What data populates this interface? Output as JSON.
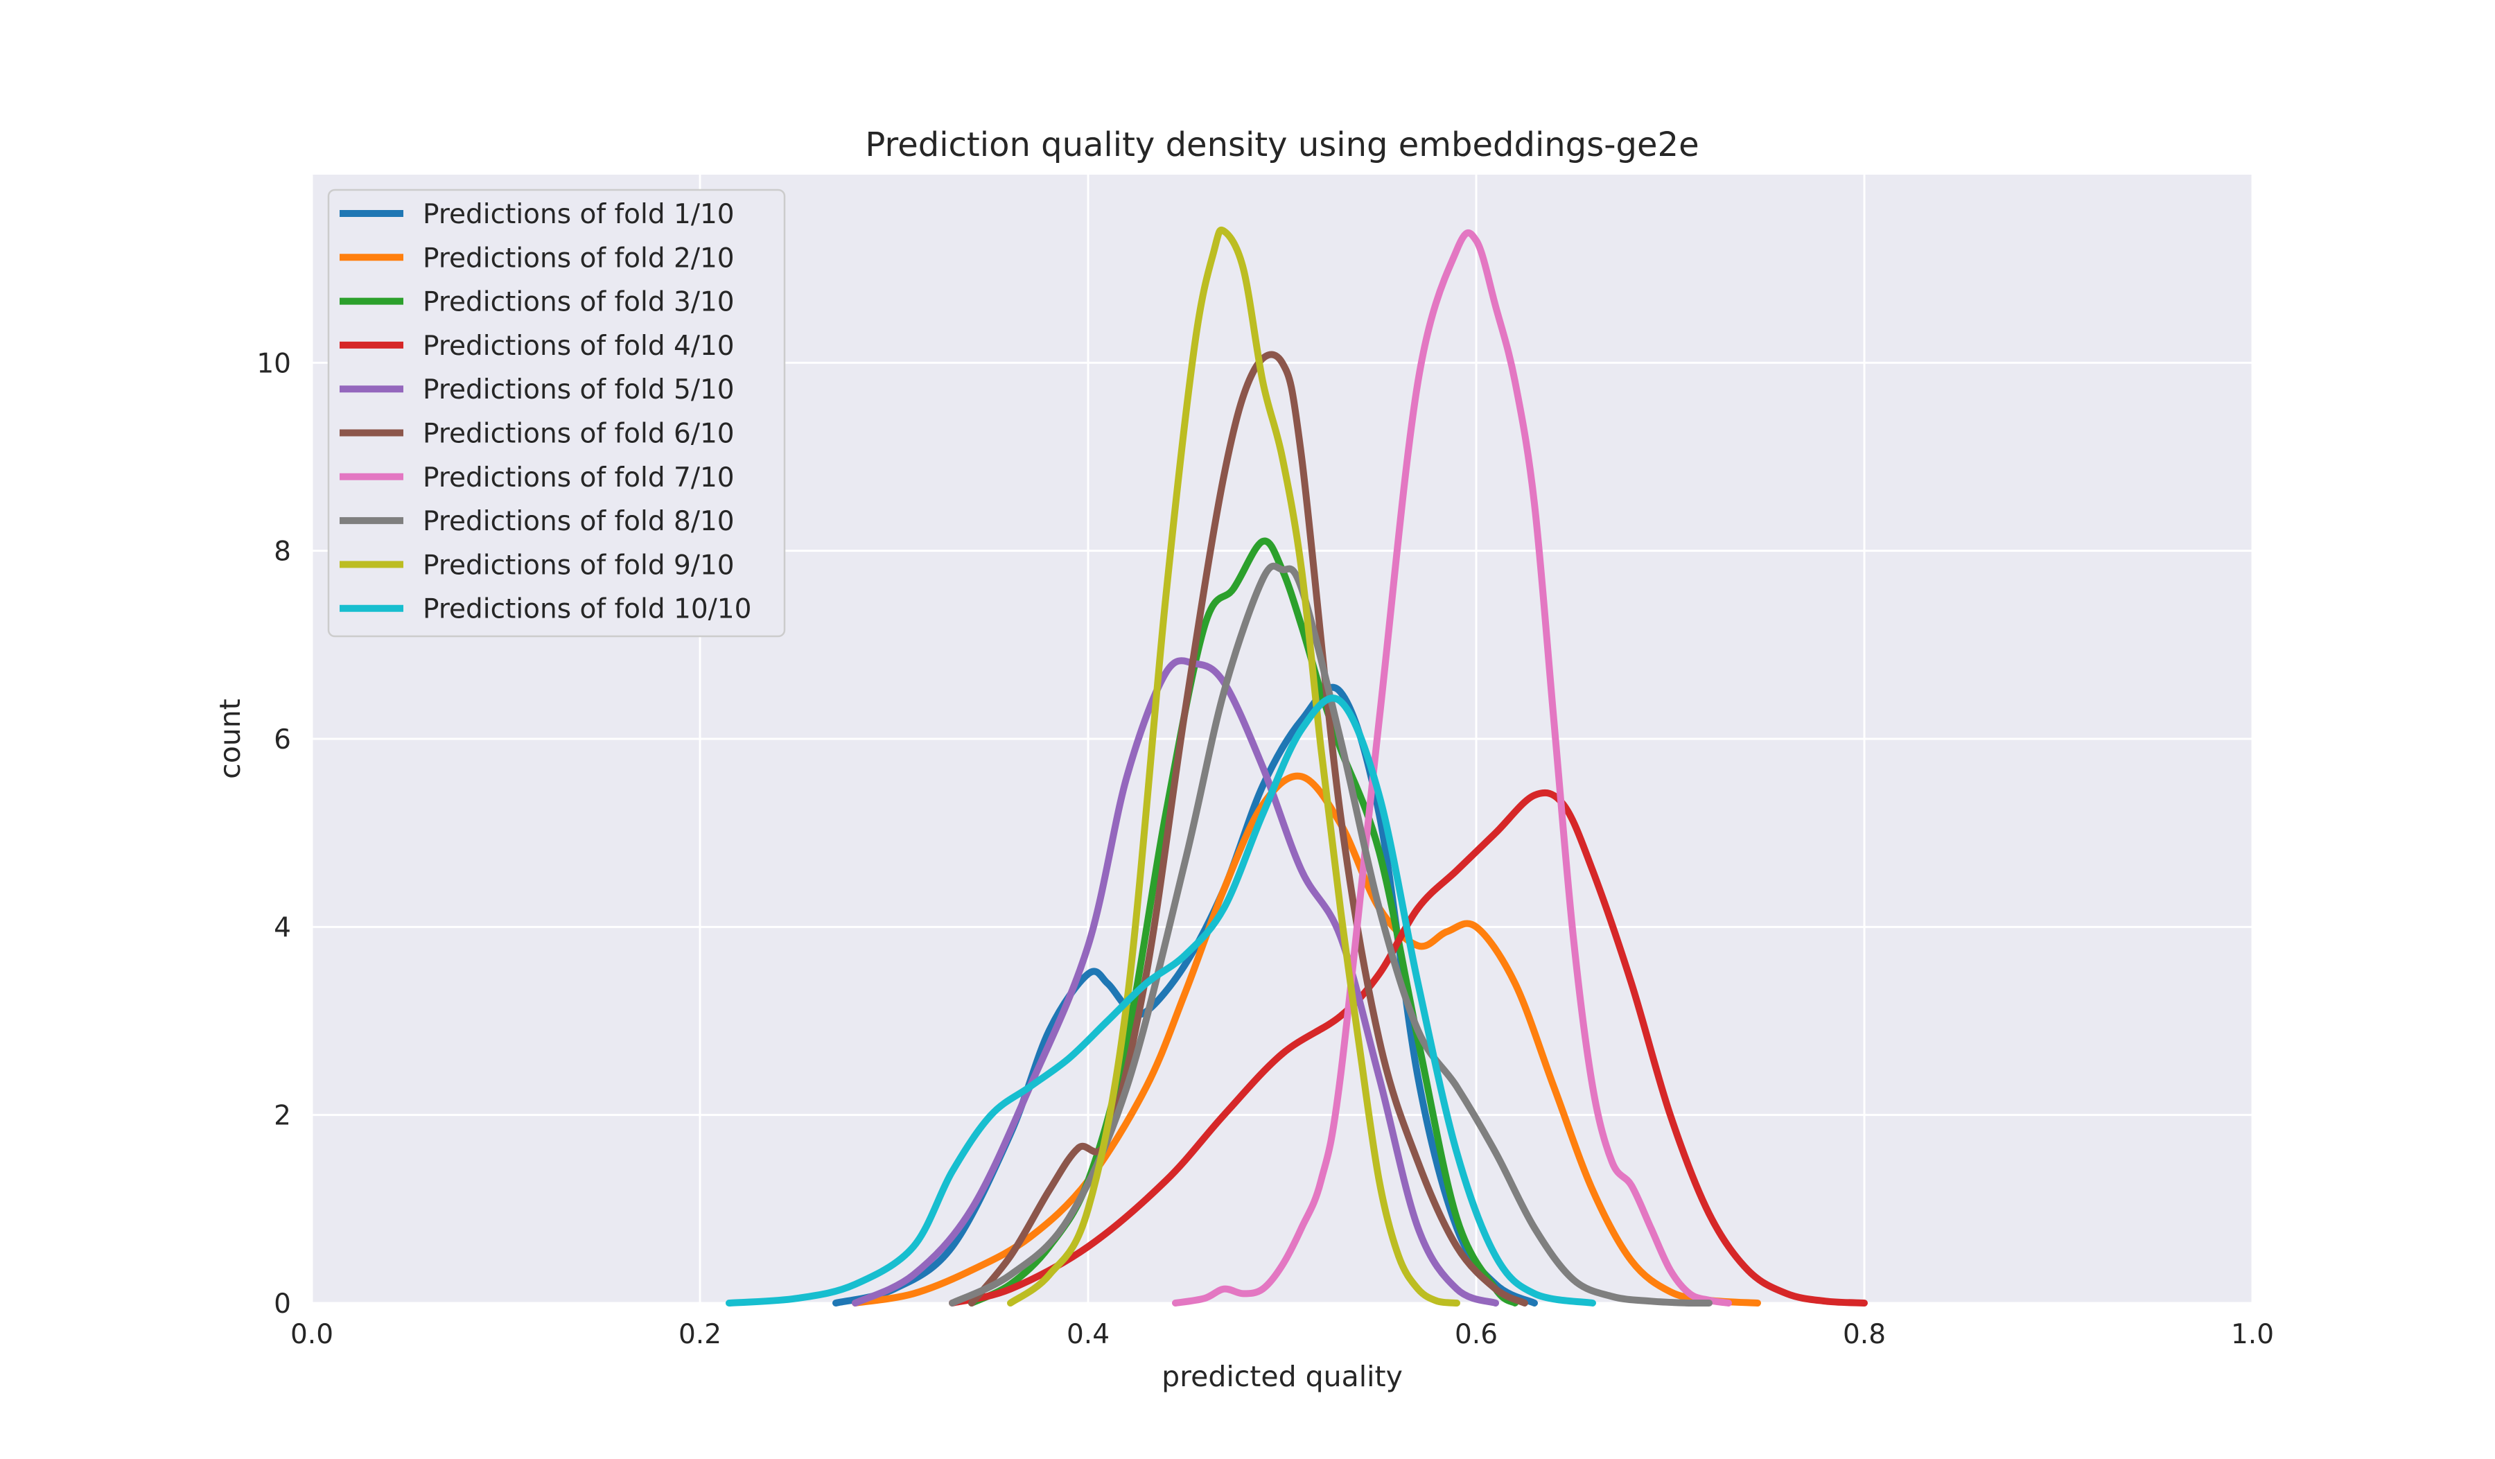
{
  "chart_data": {
    "type": "line",
    "title": "Prediction quality density using embeddings-ge2e",
    "xlabel": "predicted quality",
    "ylabel": "count",
    "xlim": [
      0.0,
      1.0
    ],
    "ylim": [
      0,
      12
    ],
    "xticks": [
      0.0,
      0.2,
      0.4,
      0.6,
      0.8,
      1.0
    ],
    "xtick_labels": [
      "0.0",
      "0.2",
      "0.4",
      "0.6",
      "0.8",
      "1.0"
    ],
    "yticks": [
      0,
      2,
      4,
      6,
      8,
      10
    ],
    "ytick_labels": [
      "0",
      "2",
      "4",
      "6",
      "8",
      "10"
    ],
    "grid": true,
    "legend_position": "top-left",
    "series": [
      {
        "name": "Predictions of fold 1/10",
        "color": "#1f77b4",
        "x": [
          0.27,
          0.3,
          0.33,
          0.36,
          0.38,
          0.4,
          0.41,
          0.42,
          0.43,
          0.45,
          0.47,
          0.49,
          0.51,
          0.53,
          0.55,
          0.57,
          0.59,
          0.61,
          0.63
        ],
        "y": [
          0.0,
          0.15,
          0.6,
          1.8,
          2.9,
          3.5,
          3.4,
          3.15,
          3.1,
          3.6,
          4.4,
          5.5,
          6.2,
          6.5,
          5.2,
          2.4,
          0.8,
          0.2,
          0.0
        ]
      },
      {
        "name": "Predictions of fold 2/10",
        "color": "#ff7f0e",
        "x": [
          0.28,
          0.31,
          0.34,
          0.37,
          0.4,
          0.43,
          0.45,
          0.47,
          0.49,
          0.51,
          0.53,
          0.55,
          0.57,
          0.585,
          0.6,
          0.62,
          0.64,
          0.66,
          0.68,
          0.7,
          0.72,
          0.745
        ],
        "y": [
          0.0,
          0.1,
          0.35,
          0.7,
          1.3,
          2.3,
          3.3,
          4.4,
          5.3,
          5.6,
          5.1,
          4.2,
          3.8,
          3.95,
          4.0,
          3.4,
          2.3,
          1.2,
          0.45,
          0.12,
          0.03,
          0.0
        ]
      },
      {
        "name": "Predictions of fold 3/10",
        "color": "#2ca02c",
        "x": [
          0.34,
          0.36,
          0.38,
          0.4,
          0.42,
          0.44,
          0.46,
          0.475,
          0.49,
          0.5,
          0.51,
          0.52,
          0.53,
          0.55,
          0.57,
          0.59,
          0.61,
          0.62
        ],
        "y": [
          0.0,
          0.2,
          0.6,
          1.3,
          2.8,
          5.2,
          7.2,
          7.6,
          8.1,
          7.8,
          7.2,
          6.5,
          5.9,
          4.8,
          2.8,
          0.9,
          0.15,
          0.0
        ]
      },
      {
        "name": "Predictions of fold 4/10",
        "color": "#d62728",
        "x": [
          0.33,
          0.36,
          0.4,
          0.44,
          0.47,
          0.5,
          0.53,
          0.55,
          0.57,
          0.59,
          0.61,
          0.63,
          0.645,
          0.66,
          0.68,
          0.7,
          0.72,
          0.74,
          0.76,
          0.78,
          0.8
        ],
        "y": [
          0.0,
          0.15,
          0.6,
          1.3,
          2.0,
          2.65,
          3.05,
          3.5,
          4.2,
          4.6,
          5.0,
          5.4,
          5.3,
          4.6,
          3.4,
          2.0,
          0.95,
          0.35,
          0.1,
          0.02,
          0.0
        ]
      },
      {
        "name": "Predictions of fold 5/10",
        "color": "#9467bd",
        "x": [
          0.28,
          0.31,
          0.34,
          0.37,
          0.4,
          0.42,
          0.44,
          0.455,
          0.47,
          0.49,
          0.51,
          0.53,
          0.55,
          0.57,
          0.59,
          0.61
        ],
        "y": [
          0.0,
          0.3,
          1.0,
          2.3,
          3.8,
          5.6,
          6.7,
          6.8,
          6.6,
          5.7,
          4.6,
          3.9,
          2.4,
          0.8,
          0.15,
          0.0
        ]
      },
      {
        "name": "Predictions of fold 6/10",
        "color": "#8c564b",
        "x": [
          0.34,
          0.36,
          0.38,
          0.395,
          0.41,
          0.43,
          0.45,
          0.47,
          0.485,
          0.5,
          0.51,
          0.53,
          0.55,
          0.57,
          0.59,
          0.61,
          0.625
        ],
        "y": [
          0.0,
          0.5,
          1.2,
          1.65,
          1.75,
          3.5,
          6.3,
          8.8,
          9.9,
          10.0,
          9.0,
          5.2,
          2.8,
          1.5,
          0.6,
          0.15,
          0.0
        ]
      },
      {
        "name": "Predictions of fold 7/10",
        "color": "#e377c2",
        "x": [
          0.445,
          0.46,
          0.47,
          0.48,
          0.49,
          0.5,
          0.51,
          0.52,
          0.53,
          0.55,
          0.57,
          0.59,
          0.6,
          0.61,
          0.62,
          0.63,
          0.64,
          0.65,
          0.66,
          0.67,
          0.68,
          0.69,
          0.7,
          0.71,
          0.72,
          0.73
        ],
        "y": [
          0.0,
          0.05,
          0.15,
          0.1,
          0.15,
          0.4,
          0.8,
          1.3,
          2.4,
          6.2,
          9.8,
          11.2,
          11.3,
          10.6,
          9.8,
          8.5,
          6.2,
          3.9,
          2.3,
          1.5,
          1.25,
          0.8,
          0.35,
          0.1,
          0.03,
          0.0
        ]
      },
      {
        "name": "Predictions of fold 8/10",
        "color": "#7f7f7f",
        "x": [
          0.33,
          0.36,
          0.39,
          0.42,
          0.45,
          0.47,
          0.49,
          0.5,
          0.51,
          0.53,
          0.55,
          0.57,
          0.59,
          0.61,
          0.63,
          0.65,
          0.67,
          0.69,
          0.71,
          0.72
        ],
        "y": [
          0.0,
          0.3,
          0.9,
          2.3,
          4.7,
          6.5,
          7.7,
          7.8,
          7.6,
          6.0,
          4.2,
          2.9,
          2.3,
          1.6,
          0.8,
          0.25,
          0.07,
          0.02,
          0.0,
          0.0
        ]
      },
      {
        "name": "Predictions of fold 9/10",
        "color": "#bcbd22",
        "x": [
          0.36,
          0.38,
          0.4,
          0.42,
          0.44,
          0.455,
          0.465,
          0.47,
          0.48,
          0.49,
          0.5,
          0.51,
          0.52,
          0.53,
          0.54,
          0.55,
          0.56,
          0.57,
          0.58,
          0.59
        ],
        "y": [
          0.0,
          0.3,
          1.0,
          3.2,
          7.5,
          10.2,
          11.2,
          11.4,
          11.0,
          9.8,
          9.0,
          7.8,
          5.9,
          4.2,
          2.7,
          1.3,
          0.5,
          0.15,
          0.02,
          0.0
        ]
      },
      {
        "name": "Predictions of fold 10/10",
        "color": "#17becf",
        "x": [
          0.215,
          0.25,
          0.28,
          0.31,
          0.33,
          0.35,
          0.37,
          0.39,
          0.41,
          0.43,
          0.45,
          0.47,
          0.49,
          0.51,
          0.53,
          0.55,
          0.57,
          0.59,
          0.61,
          0.63,
          0.66
        ],
        "y": [
          0.0,
          0.05,
          0.2,
          0.6,
          1.4,
          2.0,
          2.3,
          2.6,
          3.0,
          3.4,
          3.7,
          4.2,
          5.2,
          6.1,
          6.4,
          5.4,
          3.4,
          1.6,
          0.5,
          0.1,
          0.0
        ]
      }
    ]
  }
}
